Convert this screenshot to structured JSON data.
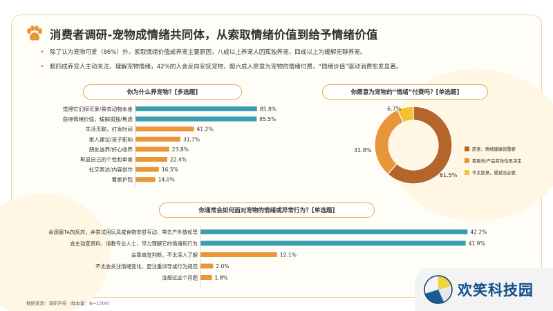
{
  "header": {
    "title": "消费者调研-宠物成情绪共同体，从索取情绪价值到给予情绪价值",
    "bullets": [
      "除了认为宠物可爱（86%）外，索取情绪价值成养宠主要原因，八成以上养宠人因孤独养宠，四成以上为缓解无聊养宠。",
      "超四成养宠人主动关注、理解宠物情绪，42%的人会反向安抚宠物，超六成人愿意为宠物的情绪付费，“情绪价值”驱动消费愈发显著。"
    ]
  },
  "colors": {
    "teal": "#3a9db0",
    "orange": "#e8963a",
    "brown": "#b3652a",
    "yellow": "#f4c230",
    "accent": "#e1a84a"
  },
  "chart_data": [
    {
      "type": "bar",
      "title": "你为什么养宠物？[多选题]",
      "categories": [
        "觉得它们很可爱/喜欢动物本身",
        "获得情绪价值，缓解孤独/焦虑",
        "生活无聊，打发时间",
        "家人建议/孩子影响",
        "朋友送养/好心收养",
        "彰显自己的个性和审美",
        "社交表达/内容创作",
        "看家护院"
      ],
      "values": [
        85.8,
        85.5,
        41.2,
        31.7,
        23.8,
        22.4,
        16.5,
        14.0
      ],
      "value_labels": [
        "85.8%",
        "85.5%",
        "41.2%",
        "31.7%",
        "23.8%",
        "22.4%",
        "16.5%",
        "14.0%"
      ],
      "xlim": [
        0,
        100
      ],
      "grid": false
    },
    {
      "type": "pie",
      "title": "你愿意为宠物的“情绪”付费吗？[单选题]",
      "labels": [
        "愿意，情绪健康很重要",
        "看服务/产品有效性再决定",
        "不太愿意，感觉没必要"
      ],
      "values": [
        61.5,
        31.8,
        6.7
      ],
      "value_labels": [
        "61.5%",
        "31.8%",
        "6.7%"
      ],
      "legend": "right",
      "style": "donut"
    },
    {
      "type": "bar",
      "title": "你通常会如何面对宠物的情绪或异常行为？[单选题]",
      "categories": [
        "会观察TA的反应，并尝试用玩具或食物安慰互动，带去户外放松等",
        "会主动查资料、请教专业人士，尽力理解它的情绪和行为",
        "会靠直觉判断，不太深入了解",
        "不太会关注情绪变化，更注重训导或行为规范",
        "没想过这个问题"
      ],
      "values": [
        42.2,
        41.9,
        12.1,
        2.0,
        1.8
      ],
      "value_labels": [
        "42.2%",
        "41.9%",
        "12.1%",
        "2.0%",
        "1.8%"
      ],
      "xlim": [
        0,
        45
      ],
      "grid": false
    }
  ],
  "footer": {
    "source": "数据来源：调研问卷（样本量：N=1000）",
    "logo_text": "欢笑科技园"
  }
}
